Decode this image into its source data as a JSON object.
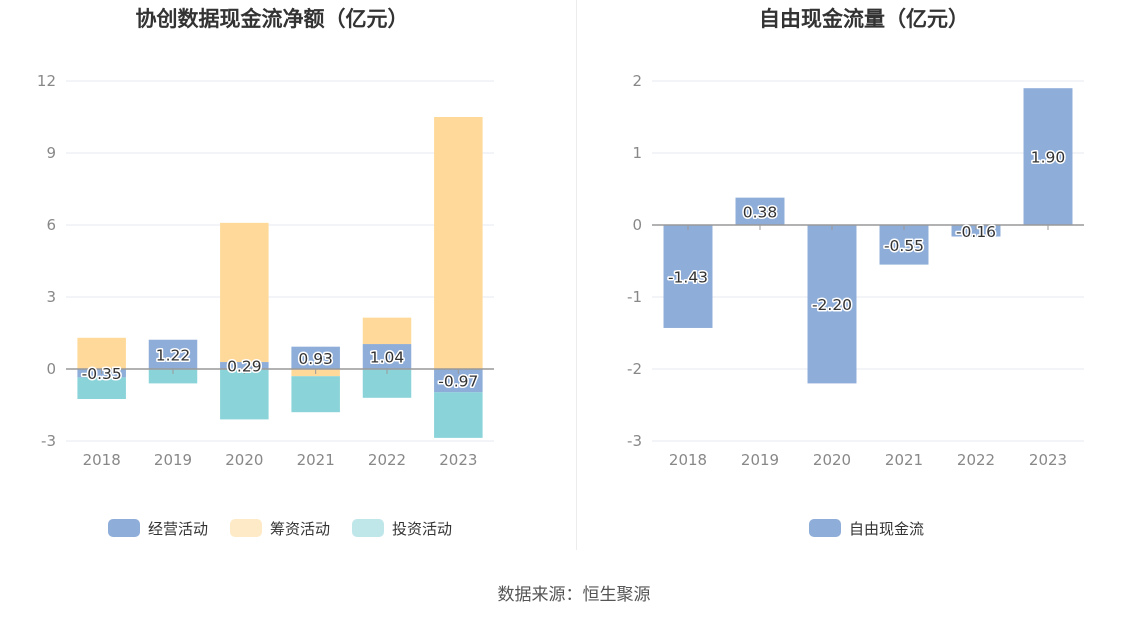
{
  "colors": {
    "operating": "#8eadd9",
    "financing": "#ffd99a",
    "investing": "#8ad3d9",
    "free": "#8eadd9",
    "grid": "#e6e8f0",
    "axis": "#999999",
    "tick_text": "#888888",
    "title_text": "#333333"
  },
  "chart_data": [
    {
      "type": "bar",
      "stacked": true,
      "title": "协创数据现金流净额（亿元）",
      "categories": [
        "2018",
        "2019",
        "2020",
        "2021",
        "2022",
        "2023"
      ],
      "ylim": [
        -3,
        12
      ],
      "yticks": [
        "12",
        "9",
        "6",
        "3",
        "0",
        "-3"
      ],
      "grid": true,
      "legend": "bottom",
      "series": [
        {
          "name": "经营活动",
          "values": [
            -0.35,
            1.22,
            0.29,
            0.93,
            1.04,
            -0.97
          ],
          "labels": [
            "-0.35",
            "1.22",
            "0.29",
            "0.93",
            "1.04",
            "-0.97"
          ]
        },
        {
          "name": "筹资活动",
          "values": [
            1.3,
            0.0,
            5.8,
            -0.3,
            1.1,
            10.5
          ]
        },
        {
          "name": "投资活动",
          "values": [
            -0.9,
            -0.6,
            -2.1,
            -1.5,
            -1.2,
            -1.9
          ]
        }
      ]
    },
    {
      "type": "bar",
      "title": "自由现金流量（亿元）",
      "categories": [
        "2018",
        "2019",
        "2020",
        "2021",
        "2022",
        "2023"
      ],
      "ylim": [
        -3,
        2
      ],
      "yticks": [
        "2",
        "1",
        "0",
        "-1",
        "-2",
        "-3"
      ],
      "grid": true,
      "legend": "bottom",
      "series": [
        {
          "name": "自由现金流",
          "values": [
            -1.43,
            0.38,
            -2.2,
            -0.55,
            -0.16,
            1.9
          ],
          "labels": [
            "-1.43",
            "0.38",
            "-2.20",
            "-0.55",
            "-0.16",
            "1.90"
          ]
        }
      ]
    }
  ],
  "footer": {
    "source": "数据来源：恒生聚源"
  }
}
